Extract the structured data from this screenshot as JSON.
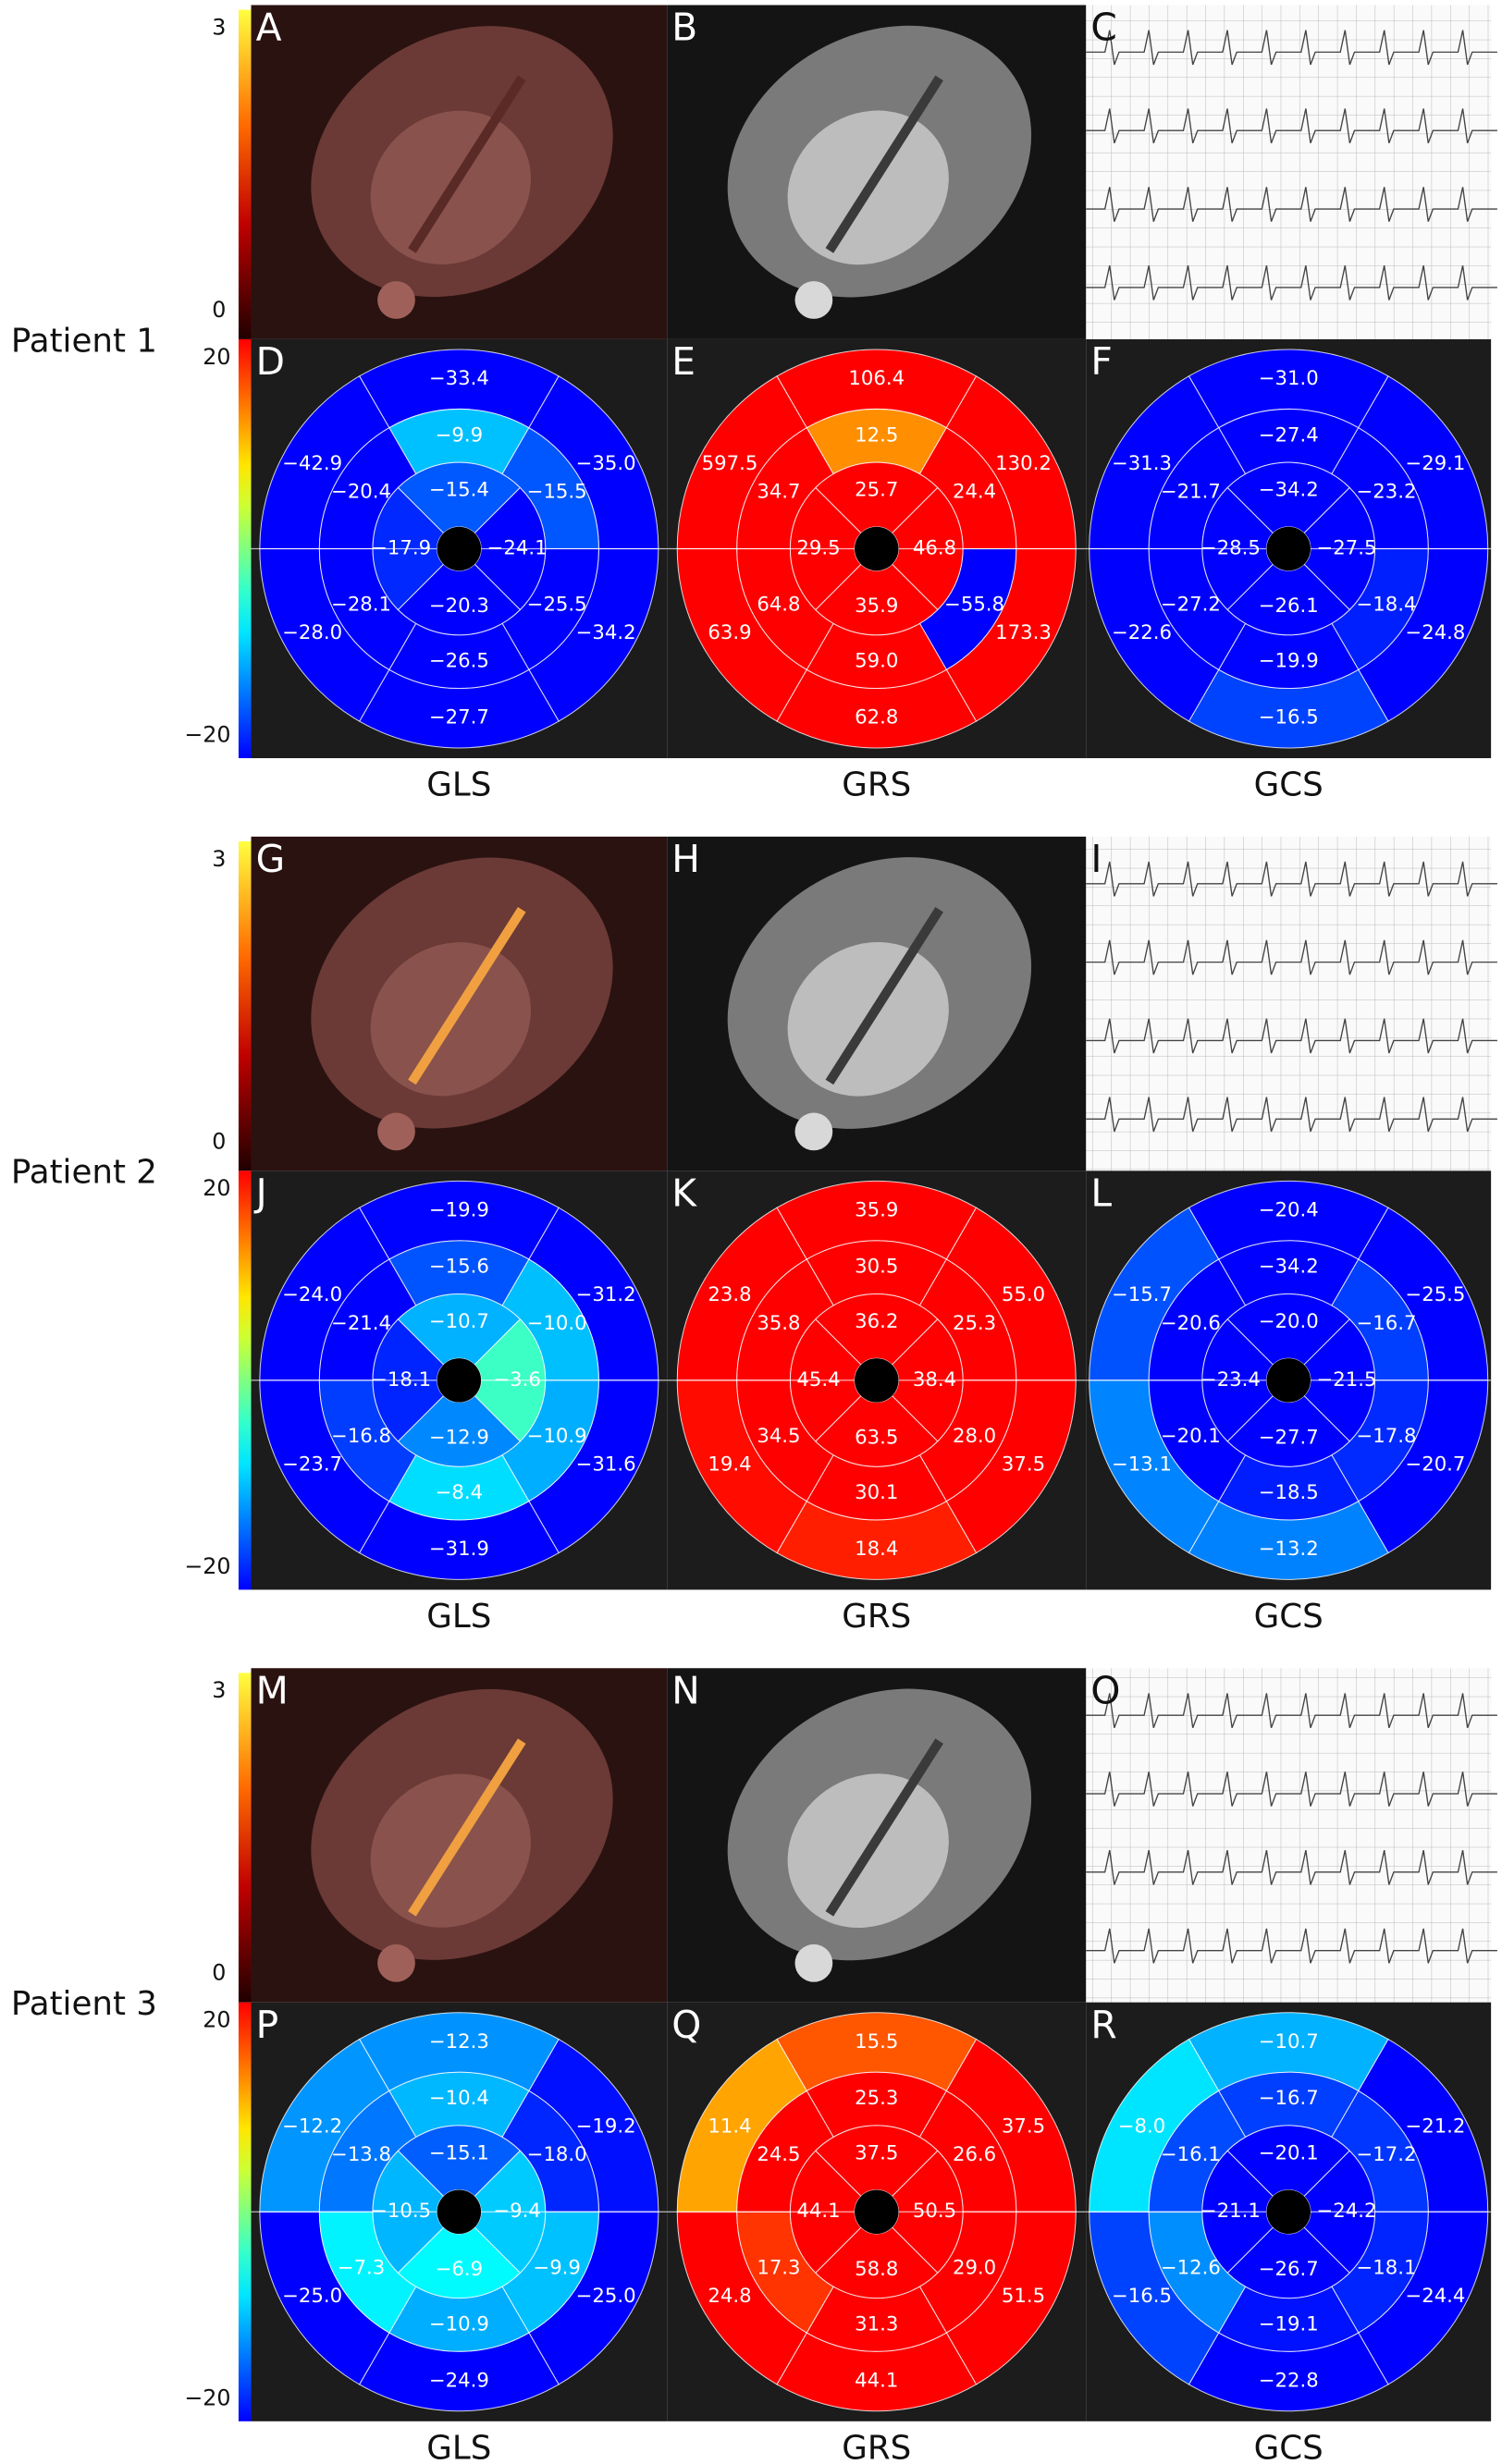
{
  "patients": [
    {
      "label": "Patient 1",
      "image_colorbar_ticks": [
        3,
        0
      ],
      "strain_colorbar_ticks": [
        20,
        {
          "value": -20,
          "label": "−20"
        }
      ],
      "image_panels": [
        "A",
        "B",
        "C"
      ],
      "bullseyes": [
        {
          "letter": "D",
          "caption": "GLS",
          "values": [
            -33.4,
            -35.0,
            -34.2,
            -27.7,
            -28.0,
            -42.9,
            -9.9,
            -15.5,
            -25.5,
            -26.5,
            -28.1,
            -20.4,
            -15.4,
            -24.1,
            -20.3,
            -17.9
          ],
          "value_labels": [
            "−33.4",
            "−35.0",
            "−34.2",
            "−27.7",
            "−28.0",
            "−42.9",
            "−9.9",
            "−15.5",
            "−25.5",
            "−26.5",
            "−28.1",
            "−20.4",
            "−15.4",
            "−24.1",
            "−20.3",
            "−17.9"
          ]
        },
        {
          "letter": "E",
          "caption": "GRS",
          "values": [
            106.4,
            130.2,
            173.3,
            62.8,
            63.9,
            597.5,
            12.5,
            24.4,
            -55.8,
            59.0,
            64.8,
            34.7,
            25.7,
            46.8,
            35.9,
            29.5
          ],
          "value_labels": [
            "106.4",
            "130.2",
            "173.3",
            "62.8",
            "63.9",
            "597.5",
            "12.5",
            "24.4",
            "−55.8",
            "59.0",
            "64.8",
            "34.7",
            "25.7",
            "46.8",
            "35.9",
            "29.5"
          ]
        },
        {
          "letter": "F",
          "caption": "GCS",
          "values": [
            -31.0,
            -29.1,
            -24.8,
            -16.5,
            -22.6,
            -31.3,
            -27.4,
            -23.2,
            -18.4,
            -19.9,
            -27.2,
            -21.7,
            -34.2,
            -27.5,
            -26.1,
            -28.5
          ],
          "value_labels": [
            "−31.0",
            "−29.1",
            "−24.8",
            "−16.5",
            "−22.6",
            "−31.3",
            "−27.4",
            "−23.2",
            "−18.4",
            "−19.9",
            "−27.2",
            "−21.7",
            "−34.2",
            "−27.5",
            "−26.1",
            "−28.5"
          ]
        }
      ]
    },
    {
      "label": "Patient 2",
      "image_colorbar_ticks": [
        3,
        0
      ],
      "strain_colorbar_ticks": [
        20,
        {
          "value": -20,
          "label": "−20"
        }
      ],
      "image_panels": [
        "G",
        "H",
        "I"
      ],
      "bullseyes": [
        {
          "letter": "J",
          "caption": "GLS",
          "values": [
            -19.9,
            -31.2,
            -31.6,
            -31.9,
            -23.7,
            -24.0,
            -15.6,
            -10.0,
            -10.9,
            -8.4,
            -16.8,
            -21.4,
            -10.7,
            -3.6,
            -12.9,
            -18.1
          ],
          "value_labels": [
            "−19.9",
            "−31.2",
            "−31.6",
            "−31.9",
            "−23.7",
            "−24.0",
            "−15.6",
            "−10.0",
            "−10.9",
            "−8.4",
            "−16.8",
            "−21.4",
            "−10.7",
            "−3.6",
            "−12.9",
            "−18.1"
          ]
        },
        {
          "letter": "K",
          "caption": "GRS",
          "values": [
            35.9,
            55.0,
            37.5,
            18.4,
            19.4,
            23.8,
            30.5,
            25.3,
            28.0,
            30.1,
            34.5,
            35.8,
            36.2,
            38.4,
            63.5,
            45.4
          ],
          "value_labels": [
            "35.9",
            "55.0",
            "37.5",
            "18.4",
            "19.4",
            "23.8",
            "30.5",
            "25.3",
            "28.0",
            "30.1",
            "34.5",
            "35.8",
            "36.2",
            "38.4",
            "63.5",
            "45.4"
          ]
        },
        {
          "letter": "L",
          "caption": "GCS",
          "values": [
            -20.4,
            -25.5,
            -20.7,
            -13.2,
            -13.1,
            -15.7,
            -34.2,
            -16.7,
            -17.8,
            -18.5,
            -20.1,
            -20.6,
            -20.0,
            -21.5,
            -27.7,
            -23.4
          ],
          "value_labels": [
            "−20.4",
            "−25.5",
            "−20.7",
            "−13.2",
            "−13.1",
            "−15.7",
            "−34.2",
            "−16.7",
            "−17.8",
            "−18.5",
            "−20.1",
            "−20.6",
            "−20.0",
            "−21.5",
            "−27.7",
            "−23.4"
          ]
        }
      ]
    },
    {
      "label": "Patient 3",
      "image_colorbar_ticks": [
        3,
        0
      ],
      "strain_colorbar_ticks": [
        20,
        {
          "value": -20,
          "label": "−20"
        }
      ],
      "image_panels": [
        "M",
        "N",
        "O"
      ],
      "bullseyes": [
        {
          "letter": "P",
          "caption": "GLS",
          "values": [
            -12.3,
            -19.2,
            -25.0,
            -24.9,
            -25.0,
            -12.2,
            -10.4,
            -18.0,
            -9.9,
            -10.9,
            -7.3,
            -13.8,
            -15.1,
            -9.4,
            -6.9,
            -10.5
          ],
          "value_labels": [
            "−12.3",
            "−19.2",
            "−25.0",
            "−24.9",
            "−25.0",
            "−12.2",
            "−10.4",
            "−18.0",
            "−9.9",
            "−10.9",
            "−7.3",
            "−13.8",
            "−15.1",
            "−9.4",
            "−6.9",
            "−10.5"
          ]
        },
        {
          "letter": "Q",
          "caption": "GRS",
          "values": [
            15.5,
            37.5,
            51.5,
            44.1,
            24.8,
            11.4,
            25.3,
            26.6,
            29.0,
            31.3,
            17.3,
            24.5,
            37.5,
            50.5,
            58.8,
            44.1
          ],
          "value_labels": [
            "15.5",
            "37.5",
            "51.5",
            "44.1",
            "24.8",
            "11.4",
            "25.3",
            "26.6",
            "29.0",
            "31.3",
            "17.3",
            "24.5",
            "37.5",
            "50.5",
            "58.8",
            "44.1"
          ]
        },
        {
          "letter": "R",
          "caption": "GCS",
          "values": [
            -10.7,
            -21.2,
            -24.4,
            -22.8,
            -16.5,
            -8.0,
            -16.7,
            -17.2,
            -18.1,
            -19.1,
            -12.6,
            -16.1,
            -20.1,
            -24.2,
            -26.7,
            -21.1
          ],
          "value_labels": [
            "−10.7",
            "−21.2",
            "−24.4",
            "−22.8",
            "−16.5",
            "−8.0",
            "−16.7",
            "−17.2",
            "−18.1",
            "−19.1",
            "−12.6",
            "−16.1",
            "−20.1",
            "−24.2",
            "−26.7",
            "−21.1"
          ]
        }
      ]
    }
  ]
}
